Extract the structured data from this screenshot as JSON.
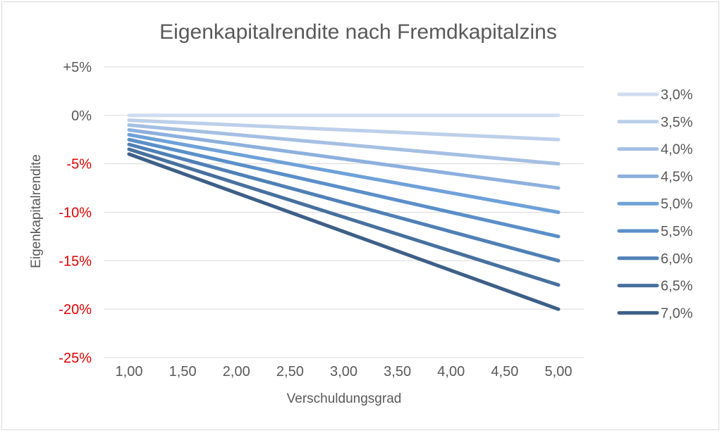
{
  "chart_data": {
    "type": "line",
    "title": "Eigenkapitalrendite nach Fremdkapitalzins",
    "xlabel": "Verschuldungsgrad",
    "ylabel": "Eigenkapitalrendite",
    "x": [
      1.0,
      1.5,
      2.0,
      2.5,
      3.0,
      3.5,
      4.0,
      4.5,
      5.0
    ],
    "x_tick_labels": [
      "1,00",
      "1,50",
      "2,00",
      "2,50",
      "3,00",
      "3,50",
      "4,00",
      "4,50",
      "5,00"
    ],
    "ylim": [
      -25,
      5
    ],
    "y_ticks": [
      5,
      0,
      -5,
      -10,
      -15,
      -20,
      -25
    ],
    "y_tick_labels": [
      "+5%",
      "0%",
      "-5%",
      "-10%",
      "-15%",
      "-20%",
      "-25%"
    ],
    "grid": true,
    "legend_position": "right",
    "negative_tick_color": "#e00000",
    "series": [
      {
        "name": "3,0%",
        "color": "#d0dcef",
        "values": [
          0.0,
          0.0,
          0.0,
          0.0,
          0.0,
          0.0,
          0.0,
          0.0,
          0.0
        ]
      },
      {
        "name": "3,5%",
        "color": "#bccfea",
        "values": [
          -0.5,
          -0.75,
          -1.0,
          -1.25,
          -1.5,
          -1.75,
          -2.0,
          -2.25,
          -2.5
        ]
      },
      {
        "name": "4,0%",
        "color": "#a5bfe3",
        "values": [
          -1.0,
          -1.5,
          -2.0,
          -2.5,
          -3.0,
          -3.5,
          -4.0,
          -4.5,
          -5.0
        ]
      },
      {
        "name": "4,5%",
        "color": "#8cb0de",
        "values": [
          -1.5,
          -2.25,
          -3.0,
          -3.75,
          -4.5,
          -5.25,
          -6.0,
          -6.75,
          -7.5
        ]
      },
      {
        "name": "5,0%",
        "color": "#6ea1d9",
        "values": [
          -2.0,
          -3.0,
          -4.0,
          -5.0,
          -6.0,
          -7.0,
          -8.0,
          -9.0,
          -10.0
        ]
      },
      {
        "name": "5,5%",
        "color": "#5a8fc9",
        "values": [
          -2.5,
          -3.75,
          -5.0,
          -6.25,
          -7.5,
          -8.75,
          -10.0,
          -11.25,
          -12.5
        ]
      },
      {
        "name": "6,0%",
        "color": "#4f80b6",
        "values": [
          -3.0,
          -4.5,
          -6.0,
          -7.5,
          -9.0,
          -10.5,
          -12.0,
          -13.5,
          -15.0
        ]
      },
      {
        "name": "6,5%",
        "color": "#47709e",
        "values": [
          -3.5,
          -5.25,
          -7.0,
          -8.75,
          -10.5,
          -12.25,
          -14.0,
          -15.75,
          -17.5
        ]
      },
      {
        "name": "7,0%",
        "color": "#3d5f87",
        "values": [
          -4.0,
          -6.0,
          -8.0,
          -10.0,
          -12.0,
          -14.0,
          -16.0,
          -18.0,
          -20.0
        ]
      }
    ]
  }
}
